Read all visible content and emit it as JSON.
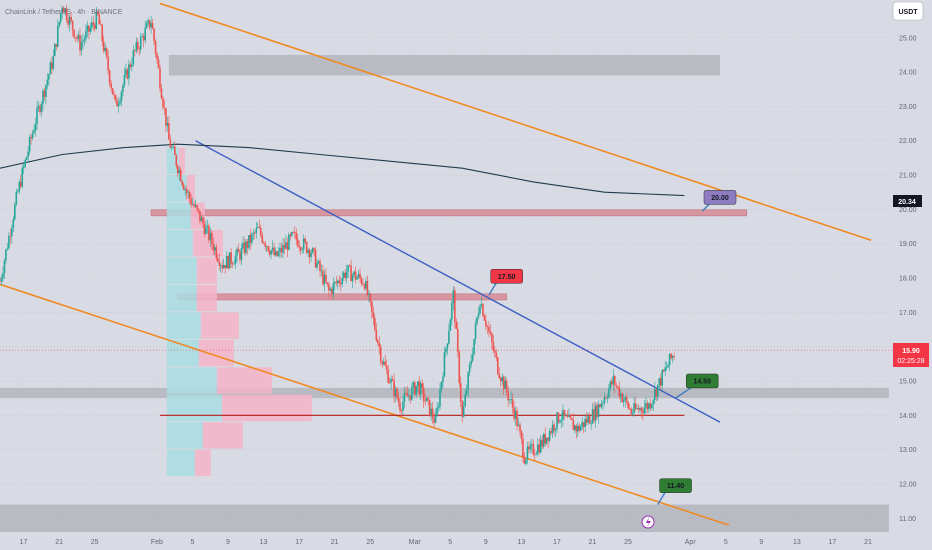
{
  "header": {
    "symbol_line": "ChainLink / TetherUS · 4h · BINANCE"
  },
  "axis": {
    "currency": "USDT"
  },
  "price_badge": {
    "price": "15.90",
    "countdown": "02:25:28",
    "color": "#f23645"
  },
  "ma_badge": {
    "value": "20.34"
  },
  "colors": {
    "up": "#26a69a",
    "down": "#ef5350",
    "channel": "#f08a24",
    "trendline": "#3d5fc4",
    "ma": "#1f3b4d",
    "support": "#b71c1c",
    "zone": "#9ea1a8",
    "resistance_zone": "#d88a96",
    "vp_up": "#a9dde3",
    "vp_down": "#f4b4c8"
  },
  "chart_data": {
    "type": "candlestick",
    "ylim": [
      10.6,
      26.1
    ],
    "y_ticks": [
      11,
      12,
      13,
      14,
      15,
      16,
      17,
      18,
      19,
      20,
      21,
      22,
      23,
      24,
      25
    ],
    "y_tick_labels": [
      "11.00",
      "12.00",
      "13.00",
      "14.00",
      "15.00",
      "16.00",
      "17.00",
      "18.00",
      "19.00",
      "20.00",
      "21.00",
      "22.00",
      "23.00",
      "24.00",
      "25.00"
    ],
    "x_tick_labels": [
      "13",
      "17",
      "21",
      "25",
      "Feb",
      "5",
      "9",
      "13",
      "17",
      "21",
      "25",
      "Mar",
      "5",
      "9",
      "13",
      "17",
      "21",
      "25",
      "Apr",
      "5",
      "9",
      "13",
      "17",
      "21"
    ],
    "path": [
      [
        "2024-01-13",
        17.9
      ],
      [
        "2024-01-15",
        20.5
      ],
      [
        "2024-01-17",
        22.6
      ],
      [
        "2024-01-19",
        24.4
      ],
      [
        "2024-01-20",
        26.0
      ],
      [
        "2024-01-22",
        24.8
      ],
      [
        "2024-01-24",
        25.6
      ],
      [
        "2024-01-26",
        23.0
      ],
      [
        "2024-01-28",
        24.5
      ],
      [
        "2024-01-30",
        25.5
      ],
      [
        "2024-02-01",
        22.0
      ],
      [
        "2024-02-03",
        20.5
      ],
      [
        "2024-02-05",
        19.5
      ],
      [
        "2024-02-07",
        18.4
      ],
      [
        "2024-02-09",
        18.7
      ],
      [
        "2024-02-11",
        19.4
      ],
      [
        "2024-02-13",
        18.6
      ],
      [
        "2024-02-15",
        19.2
      ],
      [
        "2024-02-17",
        18.8
      ],
      [
        "2024-02-19",
        17.6
      ],
      [
        "2024-02-21",
        18.2
      ],
      [
        "2024-02-23",
        17.9
      ],
      [
        "2024-02-25",
        15.6
      ],
      [
        "2024-02-27",
        14.3
      ],
      [
        "2024-02-29",
        14.9
      ],
      [
        "2024-03-02",
        13.8
      ],
      [
        "2024-03-04",
        17.5
      ],
      [
        "2024-03-05",
        13.9
      ],
      [
        "2024-03-07",
        17.4
      ],
      [
        "2024-03-09",
        15.4
      ],
      [
        "2024-03-11",
        14.0
      ],
      [
        "2024-03-12",
        12.8
      ],
      [
        "2024-03-14",
        13.2
      ],
      [
        "2024-03-16",
        14.0
      ],
      [
        "2024-03-18",
        13.6
      ],
      [
        "2024-03-20",
        14.1
      ],
      [
        "2024-03-22",
        15.0
      ],
      [
        "2024-03-24",
        14.1
      ],
      [
        "2024-03-26",
        14.3
      ],
      [
        "2024-03-28",
        15.4
      ],
      [
        "2024-03-29",
        15.9
      ]
    ],
    "ma": [
      [
        "2024-01-13",
        21.2
      ],
      [
        "2024-01-20",
        21.6
      ],
      [
        "2024-01-27",
        21.8
      ],
      [
        "2024-02-02",
        21.9
      ],
      [
        "2024-02-10",
        21.8
      ],
      [
        "2024-02-18",
        21.6
      ],
      [
        "2024-02-26",
        21.4
      ],
      [
        "2024-03-05",
        21.2
      ],
      [
        "2024-03-13",
        20.8
      ],
      [
        "2024-03-21",
        20.5
      ],
      [
        "2024-03-30",
        20.4
      ]
    ],
    "channel_upper": [
      [
        "2024-01-31",
        26.0
      ],
      [
        "2024-04-20",
        19.1
      ]
    ],
    "channel_lower": [
      [
        "2024-01-12",
        17.9
      ],
      [
        "2024-04-04",
        10.8
      ]
    ],
    "trendline": [
      [
        "2024-02-04",
        22.0
      ],
      [
        "2024-04-03",
        13.8
      ]
    ],
    "support_line": {
      "from": "2024-01-31",
      "to": "2024-03-30",
      "value": 14.0
    },
    "zones": [
      {
        "from": "2024-02-01",
        "to": "2024-04-03",
        "low": 23.9,
        "high": 24.5
      },
      {
        "from": "2024-01-12",
        "to": "2024-04-22",
        "low": 14.5,
        "high": 14.8
      },
      {
        "from": "2024-01-12",
        "to": "2024-04-22",
        "low": 10.6,
        "high": 11.4
      }
    ],
    "resistance_zones": [
      {
        "from": "2024-01-30",
        "to": "2024-04-06",
        "value": 19.9
      },
      {
        "from": "2024-02-02",
        "to": "2024-03-10",
        "value": 17.45
      }
    ],
    "volume_profile": [
      {
        "price": 12.6,
        "up": 28,
        "down": 16
      },
      {
        "price": 13.4,
        "up": 36,
        "down": 40
      },
      {
        "price": 14.2,
        "up": 55,
        "down": 90
      },
      {
        "price": 15.0,
        "up": 50,
        "down": 55
      },
      {
        "price": 15.8,
        "up": 32,
        "down": 35
      },
      {
        "price": 16.6,
        "up": 34,
        "down": 38
      },
      {
        "price": 17.4,
        "up": 30,
        "down": 20
      },
      {
        "price": 18.2,
        "up": 30,
        "down": 20
      },
      {
        "price": 19.0,
        "up": 26,
        "down": 30
      },
      {
        "price": 19.8,
        "up": 24,
        "down": 14
      },
      {
        "price": 20.6,
        "up": 20,
        "down": 8
      },
      {
        "price": 21.4,
        "up": 12,
        "down": 6
      }
    ],
    "annotations": [
      {
        "label": "20.00",
        "x": "2024-04-03",
        "y": 20.35,
        "color": "#8e7cc3",
        "pointer_to": [
          "2024-04-01",
          19.95
        ]
      },
      {
        "label": "17.50",
        "x": "2024-03-10",
        "y": 18.05,
        "color": "#f23645",
        "pointer_to": [
          "2024-03-08",
          17.5
        ]
      },
      {
        "label": "14.50",
        "x": "2024-04-01",
        "y": 15.0,
        "color": "#2e7d32",
        "pointer_to": [
          "2024-03-29",
          14.5
        ]
      },
      {
        "label": "11.40",
        "x": "2024-03-29",
        "y": 11.95,
        "color": "#2e7d32",
        "pointer_to": [
          "2024-03-27",
          11.4
        ]
      }
    ]
  }
}
